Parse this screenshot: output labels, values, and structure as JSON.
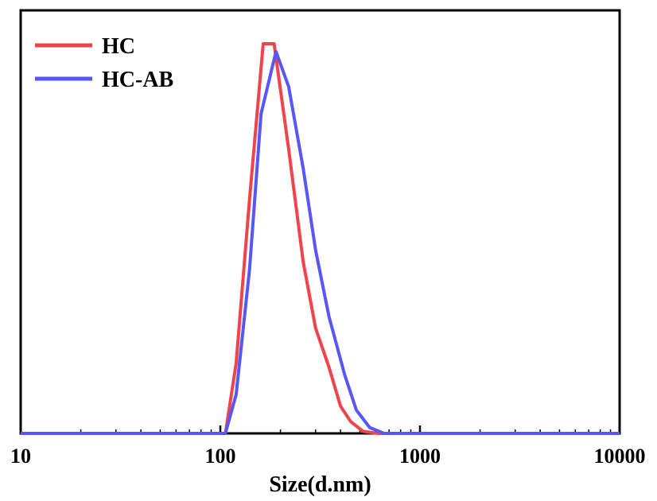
{
  "chart_data": {
    "type": "line",
    "xscale": "log",
    "xlim": [
      10,
      10000
    ],
    "ylim": [
      0,
      1.0
    ],
    "xlabel": "Size(d.nm)",
    "ylabel": "",
    "x_ticks": [
      "10",
      "100",
      "1000",
      "10000"
    ],
    "y_ticks_shown": false,
    "legend_position": "top-left",
    "grid": false,
    "series": [
      {
        "name": "HC",
        "color": "#f0434b",
        "points": [
          [
            10,
            0
          ],
          [
            106,
            0
          ],
          [
            120,
            0.18
          ],
          [
            140,
            0.6
          ],
          [
            164,
            1.0
          ],
          [
            186,
            1.0
          ],
          [
            220,
            0.73
          ],
          [
            260,
            0.44
          ],
          [
            300,
            0.27
          ],
          [
            350,
            0.17
          ],
          [
            400,
            0.07
          ],
          [
            450,
            0.03
          ],
          [
            520,
            0.005
          ],
          [
            620,
            0
          ],
          [
            10000,
            0
          ]
        ]
      },
      {
        "name": "HC-AB",
        "color": "#5757f5",
        "points": [
          [
            10,
            0
          ],
          [
            106,
            0
          ],
          [
            120,
            0.1
          ],
          [
            140,
            0.42
          ],
          [
            160,
            0.82
          ],
          [
            190,
            0.98
          ],
          [
            220,
            0.89
          ],
          [
            260,
            0.68
          ],
          [
            300,
            0.47
          ],
          [
            350,
            0.3
          ],
          [
            420,
            0.15
          ],
          [
            480,
            0.06
          ],
          [
            560,
            0.015
          ],
          [
            660,
            0
          ],
          [
            10000,
            0
          ]
        ]
      }
    ]
  }
}
